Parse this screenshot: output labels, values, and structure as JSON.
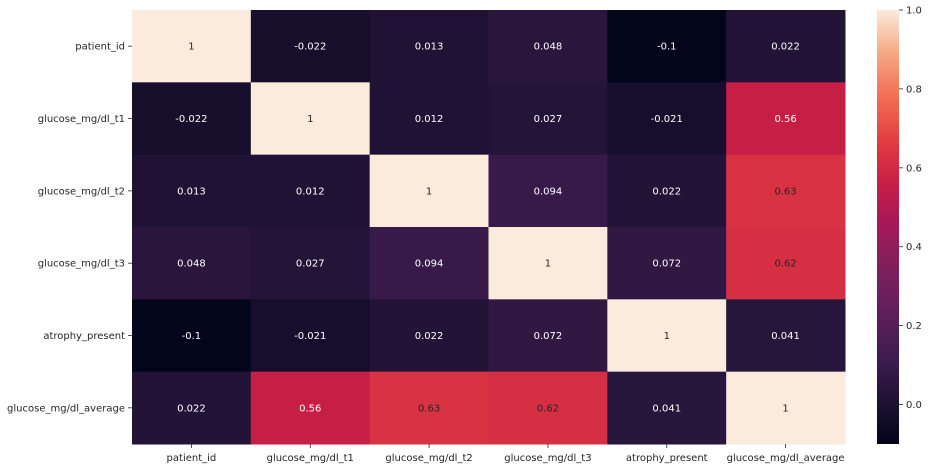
{
  "chart_data": {
    "type": "heatmap",
    "rows": [
      "patient_id",
      "glucose_mg/dl_t1",
      "glucose_mg/dl_t2",
      "glucose_mg/dl_t3",
      "atrophy_present",
      "glucose_mg/dl_average"
    ],
    "columns": [
      "patient_id",
      "glucose_mg/dl_t1",
      "glucose_mg/dl_t2",
      "glucose_mg/dl_t3",
      "atrophy_present",
      "glucose_mg/dl_average"
    ],
    "values": [
      [
        1,
        -0.022,
        0.013,
        0.048,
        -0.1,
        0.022
      ],
      [
        -0.022,
        1,
        0.012,
        0.027,
        -0.021,
        0.56
      ],
      [
        0.013,
        0.012,
        1,
        0.094,
        0.022,
        0.63
      ],
      [
        0.048,
        0.027,
        0.094,
        1,
        0.072,
        0.62
      ],
      [
        -0.1,
        -0.021,
        0.022,
        0.072,
        1,
        0.041
      ],
      [
        0.022,
        0.56,
        0.63,
        0.62,
        0.041,
        1
      ]
    ],
    "cell_labels": [
      [
        "1",
        "-0.022",
        "0.013",
        "0.048",
        "-0.1",
        "0.022"
      ],
      [
        "-0.022",
        "1",
        "0.012",
        "0.027",
        "-0.021",
        "0.56"
      ],
      [
        "0.013",
        "0.012",
        "1",
        "0.094",
        "0.022",
        "0.63"
      ],
      [
        "0.048",
        "0.027",
        "0.094",
        "1",
        "0.072",
        "0.62"
      ],
      [
        "-0.1",
        "-0.021",
        "0.022",
        "0.072",
        "1",
        "0.041"
      ],
      [
        "0.022",
        "0.56",
        "0.63",
        "0.62",
        "0.041",
        "1"
      ]
    ],
    "colorbar": {
      "vmin": -0.1,
      "vmax": 1.0,
      "ticks": [
        0.0,
        0.2,
        0.4,
        0.6,
        0.8,
        1.0
      ],
      "tick_labels": [
        "0.0",
        "0.2",
        "0.4",
        "0.6",
        "0.8",
        "1.0"
      ],
      "colormap": "rocket"
    },
    "title": "",
    "xlabel": "",
    "ylabel": "",
    "grid": false,
    "legend": "colorbar-right"
  }
}
